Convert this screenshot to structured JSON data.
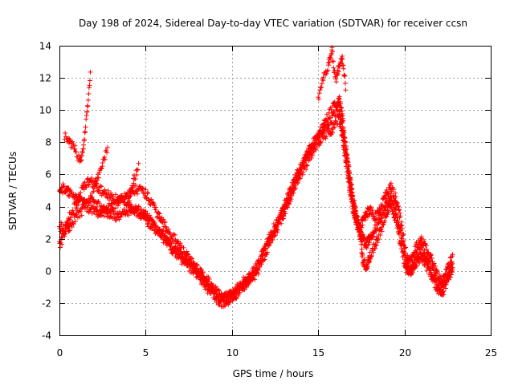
{
  "chart_data": {
    "type": "scatter",
    "title": "Day 198 of 2024, Sidereal Day-to-day VTEC variation (SDTVAR) for receiver ccsn",
    "xlabel": "GPS time / hours",
    "ylabel": "SDTVAR / TECUs",
    "xlim": [
      0,
      25
    ],
    "ylim": [
      -4,
      14
    ],
    "x_ticks": [
      0,
      5,
      10,
      15,
      20,
      25
    ],
    "y_ticks": [
      -4,
      -2,
      0,
      2,
      4,
      6,
      8,
      10,
      12,
      14
    ],
    "grid": true,
    "marker": "+",
    "color": "#ff0000",
    "tracks": [
      [
        [
          0.0,
          5.2
        ],
        [
          0.3,
          5.1
        ],
        [
          0.6,
          4.8
        ],
        [
          1.0,
          4.6
        ],
        [
          1.4,
          4.2
        ],
        [
          1.8,
          3.8
        ],
        [
          2.2,
          3.6
        ],
        [
          2.6,
          3.8
        ],
        [
          3.0,
          4.0
        ],
        [
          3.4,
          4.2
        ],
        [
          3.8,
          4.6
        ],
        [
          4.2,
          5.0
        ],
        [
          4.6,
          5.1
        ],
        [
          5.0,
          4.8
        ],
        [
          5.4,
          4.2
        ],
        [
          5.8,
          3.3
        ],
        [
          6.2,
          2.7
        ],
        [
          6.6,
          2.1
        ],
        [
          7.0,
          1.5
        ],
        [
          7.4,
          0.9
        ],
        [
          7.8,
          0.3
        ],
        [
          8.2,
          -0.1
        ],
        [
          8.6,
          -0.6
        ],
        [
          9.0,
          -1.2
        ],
        [
          9.4,
          -1.6
        ],
        [
          9.8,
          -1.6
        ],
        [
          10.2,
          -1.2
        ],
        [
          10.6,
          -0.7
        ],
        [
          11.0,
          -0.4
        ],
        [
          11.4,
          0.2
        ],
        [
          11.8,
          1.2
        ],
        [
          12.2,
          2.2
        ],
        [
          12.6,
          3.0
        ],
        [
          13.0,
          4.0
        ],
        [
          13.4,
          5.0
        ],
        [
          13.8,
          6.1
        ],
        [
          14.2,
          7.0
        ],
        [
          14.6,
          7.8
        ],
        [
          15.0,
          8.4
        ],
        [
          15.4,
          9.0
        ],
        [
          15.8,
          9.4
        ],
        [
          16.2,
          10.3
        ],
        [
          16.4,
          9.0
        ],
        [
          16.6,
          7.3
        ],
        [
          16.8,
          5.8
        ],
        [
          17.0,
          4.4
        ],
        [
          17.2,
          3.3
        ],
        [
          17.4,
          2.7
        ],
        [
          17.6,
          3.2
        ],
        [
          17.8,
          3.6
        ],
        [
          18.0,
          3.7
        ],
        [
          18.3,
          3.4
        ],
        [
          18.6,
          3.8
        ],
        [
          18.9,
          4.8
        ],
        [
          19.2,
          5.3
        ],
        [
          19.5,
          4.5
        ],
        [
          19.8,
          3.0
        ],
        [
          20.1,
          1.0
        ],
        [
          20.4,
          0.7
        ],
        [
          20.7,
          1.5
        ],
        [
          21.0,
          1.9
        ],
        [
          21.3,
          1.2
        ],
        [
          21.6,
          0.6
        ],
        [
          21.9,
          -0.3
        ],
        [
          22.2,
          -0.6
        ],
        [
          22.5,
          0.1
        ],
        [
          22.8,
          0.9
        ]
      ],
      [
        [
          0.0,
          2.8
        ],
        [
          0.3,
          2.6
        ],
        [
          0.6,
          2.8
        ],
        [
          1.0,
          3.4
        ],
        [
          1.4,
          3.9
        ],
        [
          1.8,
          4.4
        ],
        [
          2.2,
          4.1
        ],
        [
          2.6,
          3.7
        ],
        [
          3.0,
          3.5
        ],
        [
          3.4,
          3.4
        ],
        [
          3.8,
          3.6
        ],
        [
          4.2,
          3.9
        ],
        [
          4.6,
          3.8
        ],
        [
          5.0,
          3.5
        ],
        [
          5.4,
          3.0
        ],
        [
          5.8,
          2.5
        ],
        [
          6.2,
          2.0
        ],
        [
          6.6,
          1.5
        ],
        [
          7.0,
          1.0
        ],
        [
          7.4,
          0.6
        ],
        [
          7.8,
          0.2
        ],
        [
          8.2,
          -0.5
        ],
        [
          8.6,
          -1.1
        ],
        [
          9.0,
          -1.6
        ],
        [
          9.4,
          -2.0
        ],
        [
          9.8,
          -1.8
        ],
        [
          10.2,
          -1.5
        ],
        [
          10.6,
          -1.0
        ],
        [
          11.0,
          -0.6
        ],
        [
          11.4,
          -0.2
        ],
        [
          11.8,
          0.7
        ],
        [
          12.2,
          1.8
        ],
        [
          12.6,
          2.6
        ],
        [
          13.0,
          3.5
        ],
        [
          13.4,
          4.5
        ],
        [
          13.8,
          5.6
        ],
        [
          14.2,
          6.4
        ],
        [
          14.6,
          7.3
        ],
        [
          15.0,
          8.0
        ],
        [
          15.4,
          8.5
        ],
        [
          15.8,
          8.8
        ],
        [
          16.2,
          9.6
        ],
        [
          16.4,
          8.4
        ],
        [
          16.6,
          6.8
        ],
        [
          16.8,
          5.4
        ],
        [
          17.0,
          4.0
        ],
        [
          17.2,
          3.0
        ],
        [
          17.4,
          2.4
        ],
        [
          17.6,
          2.0
        ],
        [
          17.8,
          1.6
        ],
        [
          18.0,
          2.1
        ],
        [
          18.3,
          2.6
        ],
        [
          18.6,
          3.3
        ],
        [
          18.9,
          4.0
        ],
        [
          19.2,
          4.6
        ],
        [
          19.5,
          3.8
        ],
        [
          19.8,
          2.2
        ],
        [
          20.1,
          0.4
        ],
        [
          20.4,
          0.1
        ],
        [
          20.7,
          0.9
        ],
        [
          21.0,
          1.4
        ],
        [
          21.3,
          0.6
        ],
        [
          21.6,
          0.0
        ],
        [
          21.9,
          -0.9
        ],
        [
          22.2,
          -1.2
        ],
        [
          22.5,
          -0.4
        ],
        [
          22.8,
          0.4
        ]
      ],
      [
        [
          0.0,
          1.6
        ],
        [
          0.3,
          2.3
        ],
        [
          0.6,
          3.4
        ],
        [
          1.0,
          4.2
        ],
        [
          1.4,
          5.2
        ],
        [
          1.8,
          5.6
        ],
        [
          2.2,
          5.2
        ],
        [
          2.6,
          4.8
        ],
        [
          3.0,
          4.6
        ],
        [
          3.4,
          4.4
        ],
        [
          3.8,
          4.4
        ],
        [
          4.2,
          4.0
        ],
        [
          4.6,
          3.6
        ],
        [
          5.0,
          3.2
        ],
        [
          5.4,
          2.8
        ],
        [
          5.8,
          2.3
        ],
        [
          6.2,
          1.8
        ],
        [
          6.6,
          1.3
        ],
        [
          7.0,
          0.8
        ],
        [
          7.4,
          0.4
        ],
        [
          7.8,
          0.0
        ],
        [
          8.2,
          -0.3
        ],
        [
          8.6,
          -0.9
        ],
        [
          9.0,
          -1.4
        ],
        [
          9.4,
          -1.8
        ],
        [
          9.8,
          -1.7
        ],
        [
          10.2,
          -1.4
        ],
        [
          10.6,
          -0.9
        ],
        [
          11.0,
          -0.5
        ],
        [
          11.4,
          0.0
        ],
        [
          11.8,
          0.9
        ],
        [
          12.2,
          2.0
        ],
        [
          12.6,
          2.8
        ],
        [
          13.0,
          3.8
        ],
        [
          13.4,
          4.8
        ],
        [
          13.8,
          5.9
        ],
        [
          14.2,
          6.8
        ],
        [
          14.6,
          7.6
        ],
        [
          15.0,
          8.3
        ],
        [
          15.4,
          9.3
        ],
        [
          15.8,
          10.0
        ],
        [
          16.2,
          10.8
        ],
        [
          16.4,
          9.5
        ],
        [
          16.6,
          7.6
        ],
        [
          16.8,
          6.0
        ],
        [
          17.0,
          4.7
        ],
        [
          17.2,
          3.6
        ],
        [
          17.4,
          2.3
        ],
        [
          17.6,
          0.6
        ],
        [
          17.8,
          0.3
        ],
        [
          18.0,
          0.9
        ],
        [
          18.3,
          1.6
        ],
        [
          18.6,
          2.4
        ],
        [
          18.9,
          3.5
        ],
        [
          19.2,
          4.2
        ],
        [
          19.5,
          3.2
        ],
        [
          19.8,
          1.6
        ],
        [
          20.1,
          0.0
        ],
        [
          20.4,
          -0.2
        ],
        [
          20.7,
          0.5
        ],
        [
          21.0,
          1.0
        ],
        [
          21.3,
          0.3
        ],
        [
          21.6,
          -0.4
        ],
        [
          21.9,
          -1.2
        ],
        [
          22.2,
          -1.4
        ],
        [
          22.5,
          -0.6
        ],
        [
          22.8,
          0.2
        ]
      ]
    ],
    "spikes": [
      [
        [
          0.3,
          8.4
        ],
        [
          0.6,
          8.0
        ],
        [
          0.9,
          7.6
        ],
        [
          1.2,
          6.8
        ],
        [
          1.4,
          7.8
        ],
        [
          1.6,
          9.8
        ],
        [
          1.8,
          12.3
        ]
      ],
      [
        [
          1.9,
          5.0
        ],
        [
          2.2,
          5.8
        ],
        [
          2.5,
          6.6
        ],
        [
          2.8,
          7.7
        ]
      ],
      [
        [
          4.0,
          4.4
        ],
        [
          4.3,
          5.6
        ],
        [
          4.6,
          6.6
        ]
      ],
      [
        [
          15.0,
          10.6
        ],
        [
          15.3,
          12.0
        ],
        [
          15.6,
          12.8
        ],
        [
          15.8,
          13.7
        ],
        [
          16.0,
          11.8
        ],
        [
          16.2,
          12.6
        ],
        [
          16.4,
          13.2
        ],
        [
          16.6,
          11.4
        ]
      ]
    ]
  }
}
